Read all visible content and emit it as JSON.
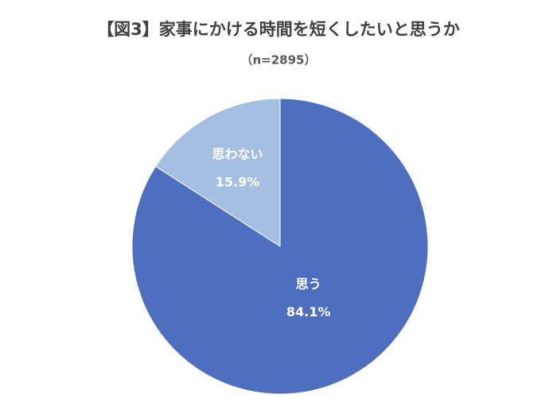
{
  "chart_data": {
    "type": "pie",
    "title": "【図3】家事にかける時間を短くしたいと思うか",
    "subtitle": "（n=2895）",
    "categories": [
      "思う",
      "思わない"
    ],
    "values": [
      84.1,
      15.9
    ],
    "value_labels": [
      "84.1%",
      "15.9%"
    ],
    "colors": [
      "#4e6fbf",
      "#a5bfe2"
    ]
  }
}
